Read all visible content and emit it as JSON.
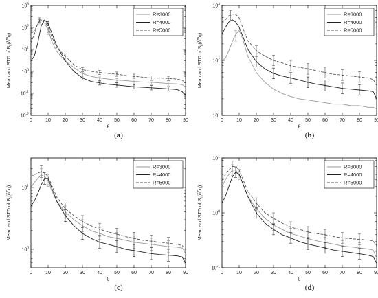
{
  "chart_data": [
    {
      "type": "line",
      "panel": "a",
      "caption": [
        "(",
        "a",
        ")"
      ],
      "xlabel": "θ",
      "ylabel": "Mean and STD of B",
      "ylabel_sub": "ij",
      "ylabel_tail": "(δ",
      "ylabel_sup": "m",
      "ylabel_end": "q)",
      "xlim": [
        0,
        90
      ],
      "ylim": [
        0.01,
        1000
      ],
      "yscale": "log",
      "xticks": [
        0,
        10,
        20,
        30,
        40,
        50,
        60,
        70,
        80,
        90
      ],
      "xtick_labels": [
        "0",
        "10",
        "20",
        "30",
        "40",
        "50",
        "60",
        "70",
        "80",
        "90"
      ],
      "yticks": [
        0.01,
        0.1,
        1,
        10,
        100,
        1000
      ],
      "ytick_labels": [
        [
          "10",
          "-2"
        ],
        [
          "10",
          "-1"
        ],
        [
          "10",
          "0"
        ],
        [
          "10",
          "1"
        ],
        [
          "10",
          "2"
        ],
        [
          "10",
          "3"
        ]
      ],
      "legend_position": "top-right",
      "series": [
        {
          "name": "R=3000",
          "color": "#999999",
          "dash": "",
          "x": [
            0,
            2,
            4,
            6,
            8,
            10,
            12,
            15,
            20,
            25,
            30,
            35,
            40,
            45,
            50,
            55,
            60,
            65,
            70,
            75,
            80,
            85,
            88,
            90
          ],
          "y": [
            50,
            70,
            150,
            220,
            150,
            80,
            25,
            8,
            3,
            1.5,
            0.8,
            0.6,
            0.5,
            0.45,
            0.4,
            0.38,
            0.35,
            0.33,
            0.32,
            0.3,
            0.28,
            0.27,
            0.25,
            0.2
          ],
          "err_x": [
            5,
            10,
            20,
            30,
            40,
            50,
            60,
            70,
            80
          ],
          "err_y": [
            180,
            60,
            4,
            0.7,
            0.45,
            0.38,
            0.33,
            0.3,
            0.27
          ]
        },
        {
          "name": "R=4000",
          "color": "#222222",
          "dash": "",
          "x": [
            0,
            2,
            4,
            6,
            8,
            10,
            12,
            15,
            20,
            25,
            30,
            35,
            40,
            45,
            50,
            55,
            60,
            65,
            70,
            75,
            80,
            85,
            88,
            90
          ],
          "y": [
            3,
            5,
            20,
            120,
            220,
            150,
            60,
            15,
            3,
            1,
            0.5,
            0.35,
            0.3,
            0.26,
            0.24,
            0.22,
            0.2,
            0.19,
            0.18,
            0.17,
            0.16,
            0.15,
            0.12,
            0.08
          ],
          "err_x": [
            10,
            30,
            40,
            50,
            60,
            70,
            80
          ],
          "err_y": [
            150,
            0.5,
            0.3,
            0.24,
            0.2,
            0.18,
            0.16
          ]
        },
        {
          "name": "R=5000",
          "color": "#555555",
          "dash": "4,2",
          "x": [
            0,
            2,
            4,
            6,
            8,
            10,
            12,
            15,
            20,
            25,
            30,
            35,
            40,
            45,
            50,
            55,
            60,
            65,
            70,
            75,
            80,
            85,
            88,
            90
          ],
          "y": [
            20,
            50,
            150,
            250,
            200,
            100,
            40,
            12,
            5,
            2,
            1.2,
            1,
            0.9,
            0.8,
            0.75,
            0.65,
            0.6,
            0.55,
            0.5,
            0.5,
            0.48,
            0.45,
            0.4,
            0.3
          ],
          "err_x": [
            5,
            20,
            30,
            40,
            50,
            60,
            70,
            80
          ],
          "err_y": [
            220,
            5,
            1.2,
            0.9,
            0.75,
            0.6,
            0.5,
            0.48
          ]
        }
      ]
    },
    {
      "type": "line",
      "panel": "b",
      "caption": [
        "(",
        "b",
        ")"
      ],
      "xlabel": "θ",
      "ylabel": "Mean and STD of S",
      "ylabel_sub": "ij",
      "ylabel_tail": "(δ",
      "ylabel_sup": "m",
      "ylabel_end": "q)",
      "xlim": [
        0,
        90
      ],
      "ylim": [
        10,
        1000
      ],
      "yscale": "log",
      "xticks": [
        0,
        10,
        20,
        30,
        40,
        50,
        60,
        70,
        80,
        90
      ],
      "xtick_labels": [
        "0",
        "10",
        "20",
        "30",
        "40",
        "50",
        "60",
        "70",
        "80",
        "90"
      ],
      "yticks": [
        10,
        100,
        1000
      ],
      "ytick_labels": [
        [
          "10",
          "1"
        ],
        [
          "10",
          "2"
        ],
        [
          "10",
          "3"
        ]
      ],
      "legend_position": "top-right",
      "series": [
        {
          "name": "R=3000",
          "color": "#999999",
          "dash": "",
          "x": [
            0,
            2,
            4,
            6,
            8,
            10,
            12,
            15,
            20,
            25,
            30,
            35,
            40,
            45,
            50,
            55,
            60,
            65,
            70,
            75,
            80,
            85,
            88,
            90
          ],
          "y": [
            100,
            110,
            150,
            220,
            300,
            350,
            250,
            120,
            60,
            40,
            30,
            25,
            22,
            20,
            19,
            18,
            17,
            16,
            16,
            15,
            15,
            14,
            14,
            13
          ],
          "err_x": [
            8
          ],
          "err_y": [
            280
          ]
        },
        {
          "name": "R=4000",
          "color": "#222222",
          "dash": "",
          "x": [
            0,
            2,
            4,
            6,
            8,
            10,
            12,
            15,
            20,
            25,
            30,
            35,
            40,
            45,
            50,
            55,
            60,
            65,
            70,
            75,
            80,
            85,
            88,
            90
          ],
          "y": [
            300,
            400,
            500,
            550,
            500,
            400,
            280,
            160,
            95,
            70,
            58,
            52,
            48,
            44,
            40,
            37,
            35,
            33,
            31,
            30,
            29,
            28,
            27,
            20
          ],
          "err_x": [
            20,
            30,
            40,
            50,
            60,
            70,
            80
          ],
          "err_y": [
            95,
            58,
            48,
            40,
            35,
            31,
            29
          ]
        },
        {
          "name": "R=5000",
          "color": "#555555",
          "dash": "4,2",
          "x": [
            0,
            2,
            4,
            6,
            8,
            10,
            12,
            15,
            20,
            25,
            30,
            35,
            40,
            45,
            50,
            55,
            60,
            65,
            70,
            75,
            80,
            85,
            88,
            90
          ],
          "y": [
            500,
            550,
            650,
            700,
            680,
            600,
            400,
            230,
            150,
            120,
            100,
            90,
            80,
            75,
            70,
            65,
            60,
            56,
            54,
            52,
            50,
            48,
            45,
            35
          ],
          "err_x": [
            5,
            20,
            30,
            40,
            50,
            60,
            70,
            80
          ],
          "err_y": [
            650,
            150,
            100,
            80,
            70,
            60,
            54,
            50
          ]
        }
      ]
    },
    {
      "type": "line",
      "panel": "c",
      "caption": [
        "(",
        "c",
        ")"
      ],
      "xlabel": "θ",
      "ylabel": "Mean and STD of B",
      "ylabel_sub": "ij",
      "ylabel_tail": "(δ",
      "ylabel_sup": "m",
      "ylabel_end": "q)",
      "xlim": [
        0,
        90
      ],
      "ylim": [
        0.5,
        30
      ],
      "yscale": "log",
      "xticks": [
        0,
        10,
        20,
        30,
        40,
        50,
        60,
        70,
        80,
        90
      ],
      "xtick_labels": [
        "0",
        "10",
        "20",
        "30",
        "40",
        "50",
        "60",
        "70",
        "80",
        "90"
      ],
      "yticks": [
        1,
        10
      ],
      "ytick_labels": [
        [
          "10",
          "0"
        ],
        [
          "10",
          "1"
        ]
      ],
      "legend_position": "top-right",
      "series": [
        {
          "name": "R=3000",
          "color": "#999999",
          "dash": "",
          "x": [
            0,
            2,
            4,
            6,
            8,
            10,
            12,
            15,
            20,
            25,
            30,
            35,
            40,
            45,
            50,
            55,
            60,
            65,
            70,
            75,
            80,
            85,
            88,
            90
          ],
          "y": [
            10,
            12,
            14,
            16,
            15,
            13,
            9,
            6,
            4,
            3,
            2.4,
            2,
            1.8,
            1.6,
            1.5,
            1.4,
            1.3,
            1.25,
            1.2,
            1.15,
            1.1,
            1.08,
            1.05,
            0.9
          ],
          "err_x": [
            6,
            10,
            20,
            30,
            40,
            50,
            60,
            70,
            80
          ],
          "err_y": [
            16,
            13,
            4,
            2.4,
            1.8,
            1.5,
            1.3,
            1.2,
            1.1
          ]
        },
        {
          "name": "R=4000",
          "color": "#222222",
          "dash": "",
          "x": [
            0,
            2,
            4,
            6,
            8,
            10,
            12,
            15,
            20,
            25,
            30,
            35,
            40,
            45,
            50,
            55,
            60,
            65,
            70,
            75,
            80,
            85,
            88,
            90
          ],
          "y": [
            5,
            6,
            8,
            11,
            14,
            14,
            10,
            6,
            3.5,
            2.4,
            1.8,
            1.5,
            1.3,
            1.2,
            1.1,
            1.0,
            0.95,
            0.9,
            0.85,
            0.82,
            0.8,
            0.78,
            0.75,
            0.6
          ],
          "err_x": [
            8,
            20,
            30,
            40,
            50,
            60,
            70,
            80
          ],
          "err_y": [
            14,
            3.5,
            1.8,
            1.3,
            1.1,
            0.95,
            0.85,
            0.8
          ]
        },
        {
          "name": "R=5000",
          "color": "#555555",
          "dash": "4,2",
          "x": [
            0,
            2,
            4,
            6,
            8,
            10,
            12,
            15,
            20,
            25,
            30,
            35,
            40,
            45,
            50,
            55,
            60,
            65,
            70,
            75,
            80,
            85,
            88,
            90
          ],
          "y": [
            15,
            16,
            17,
            18,
            17,
            15,
            11,
            7,
            4.5,
            3.5,
            2.8,
            2.4,
            2.1,
            1.9,
            1.75,
            1.6,
            1.5,
            1.4,
            1.35,
            1.3,
            1.25,
            1.2,
            1.15,
            1.0
          ],
          "err_x": [
            6,
            20,
            30,
            40,
            50,
            60,
            70,
            80
          ],
          "err_y": [
            18,
            4.5,
            2.8,
            2.1,
            1.75,
            1.5,
            1.35,
            1.25
          ]
        }
      ]
    },
    {
      "type": "line",
      "panel": "d",
      "caption": [
        "(",
        "d",
        ")"
      ],
      "xlabel": "θ",
      "ylabel": "Mean and STD of S",
      "ylabel_sub": "ij",
      "ylabel_tail": "(δ",
      "ylabel_sup": "m",
      "ylabel_end": "q)",
      "xlim": [
        0,
        90
      ],
      "ylim": [
        0.1,
        10
      ],
      "yscale": "log",
      "xticks": [
        0,
        10,
        20,
        30,
        40,
        50,
        60,
        70,
        80,
        90
      ],
      "xtick_labels": [
        "0",
        "10",
        "20",
        "30",
        "40",
        "50",
        "60",
        "70",
        "80",
        "90"
      ],
      "yticks": [
        0.1,
        1,
        10
      ],
      "ytick_labels": [
        [
          "10",
          "-1"
        ],
        [
          "10",
          "0"
        ],
        [
          "10",
          "1"
        ]
      ],
      "legend_position": "top-right",
      "series": [
        {
          "name": "R=3000",
          "color": "#999999",
          "dash": "",
          "x": [
            0,
            2,
            4,
            6,
            8,
            10,
            12,
            15,
            20,
            25,
            30,
            35,
            40,
            45,
            50,
            55,
            60,
            65,
            70,
            75,
            80,
            85,
            88,
            90
          ],
          "y": [
            3,
            4,
            5,
            6,
            6,
            5,
            3.5,
            2,
            1.2,
            0.8,
            0.6,
            0.5,
            0.42,
            0.38,
            0.34,
            0.31,
            0.29,
            0.27,
            0.25,
            0.24,
            0.23,
            0.22,
            0.21,
            0.15
          ],
          "err_x": [
            6,
            10,
            20,
            30,
            40,
            50,
            60,
            70,
            80
          ],
          "err_y": [
            6,
            5,
            1.2,
            0.6,
            0.42,
            0.34,
            0.29,
            0.25,
            0.23
          ]
        },
        {
          "name": "R=4000",
          "color": "#222222",
          "dash": "",
          "x": [
            0,
            2,
            4,
            6,
            8,
            10,
            12,
            15,
            20,
            25,
            30,
            35,
            40,
            45,
            50,
            55,
            60,
            65,
            70,
            75,
            80,
            85,
            88,
            90
          ],
          "y": [
            1.5,
            2,
            3,
            4.5,
            5.5,
            5,
            3.5,
            2,
            1,
            0.65,
            0.5,
            0.4,
            0.35,
            0.3,
            0.27,
            0.25,
            0.23,
            0.21,
            0.2,
            0.19,
            0.18,
            0.17,
            0.16,
            0.12
          ],
          "err_x": [
            8,
            20,
            30,
            40,
            50,
            60,
            70,
            80
          ],
          "err_y": [
            5.5,
            1,
            0.5,
            0.35,
            0.27,
            0.23,
            0.2,
            0.18
          ]
        },
        {
          "name": "R=5000",
          "color": "#555555",
          "dash": "4,2",
          "x": [
            0,
            2,
            4,
            6,
            8,
            10,
            12,
            15,
            20,
            25,
            30,
            35,
            40,
            45,
            50,
            55,
            60,
            65,
            70,
            75,
            80,
            85,
            88,
            90
          ],
          "y": [
            4,
            5,
            6,
            7,
            7,
            6,
            4.2,
            2.5,
            1.5,
            1.0,
            0.8,
            0.65,
            0.55,
            0.5,
            0.45,
            0.42,
            0.4,
            0.37,
            0.35,
            0.34,
            0.33,
            0.32,
            0.31,
            0.25
          ],
          "err_x": [
            6,
            20,
            30,
            40,
            50,
            60,
            70,
            80
          ],
          "err_y": [
            7,
            1.5,
            0.8,
            0.55,
            0.45,
            0.4,
            0.35,
            0.33
          ]
        }
      ]
    }
  ]
}
